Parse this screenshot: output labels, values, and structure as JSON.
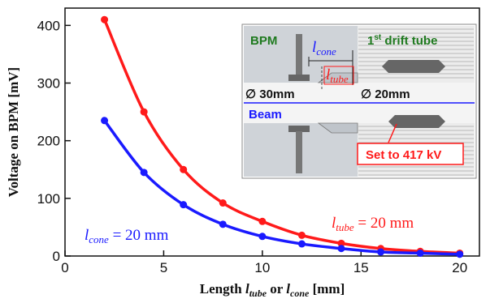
{
  "chart_data": {
    "type": "line",
    "title": "",
    "xlabel": {
      "pre": "Length ",
      "var1": "l",
      "sub1": "tube",
      "mid": " or ",
      "var2": "l",
      "sub2": "cone",
      "post": " [mm]"
    },
    "ylabel": "Voltage on BPM [mV]",
    "xlim": [
      0,
      21
    ],
    "ylim": [
      0,
      430
    ],
    "xticks": [
      0,
      5,
      10,
      15,
      20
    ],
    "yticks": [
      0,
      100,
      200,
      300,
      400
    ],
    "x": [
      2,
      4,
      6,
      8,
      10,
      12,
      14,
      16,
      18,
      20
    ],
    "series": [
      {
        "color": "#ff1a1a",
        "values": [
          410,
          250,
          150,
          92,
          60,
          36,
          22,
          13,
          8,
          5
        ]
      },
      {
        "color": "#1a1aff",
        "values": [
          235,
          145,
          89,
          55,
          34,
          21,
          13,
          7,
          5,
          3
        ]
      }
    ],
    "annotations": [
      {
        "var": "l",
        "sub": "cone",
        "text": " = 20 mm",
        "color": "#1a1aff"
      },
      {
        "var": "l",
        "sub": "tube",
        "text": " = 20 mm",
        "color": "#ff1a1a"
      }
    ]
  },
  "inset": {
    "bpm": "BPM",
    "lcone_var": "l",
    "lcone_sub": "cone",
    "ltube_var": "l",
    "ltube_sub": "tube",
    "drift_pre": "1",
    "drift_sup": "st",
    "drift_post": " drift tube",
    "d30": "∅ 30mm",
    "d20": "∅ 20mm",
    "beam": "Beam",
    "set": "Set to 417 kV"
  },
  "colors": {
    "green": "#1f7a1f",
    "blue": "#1a1aff",
    "red": "#ff1a1a"
  }
}
